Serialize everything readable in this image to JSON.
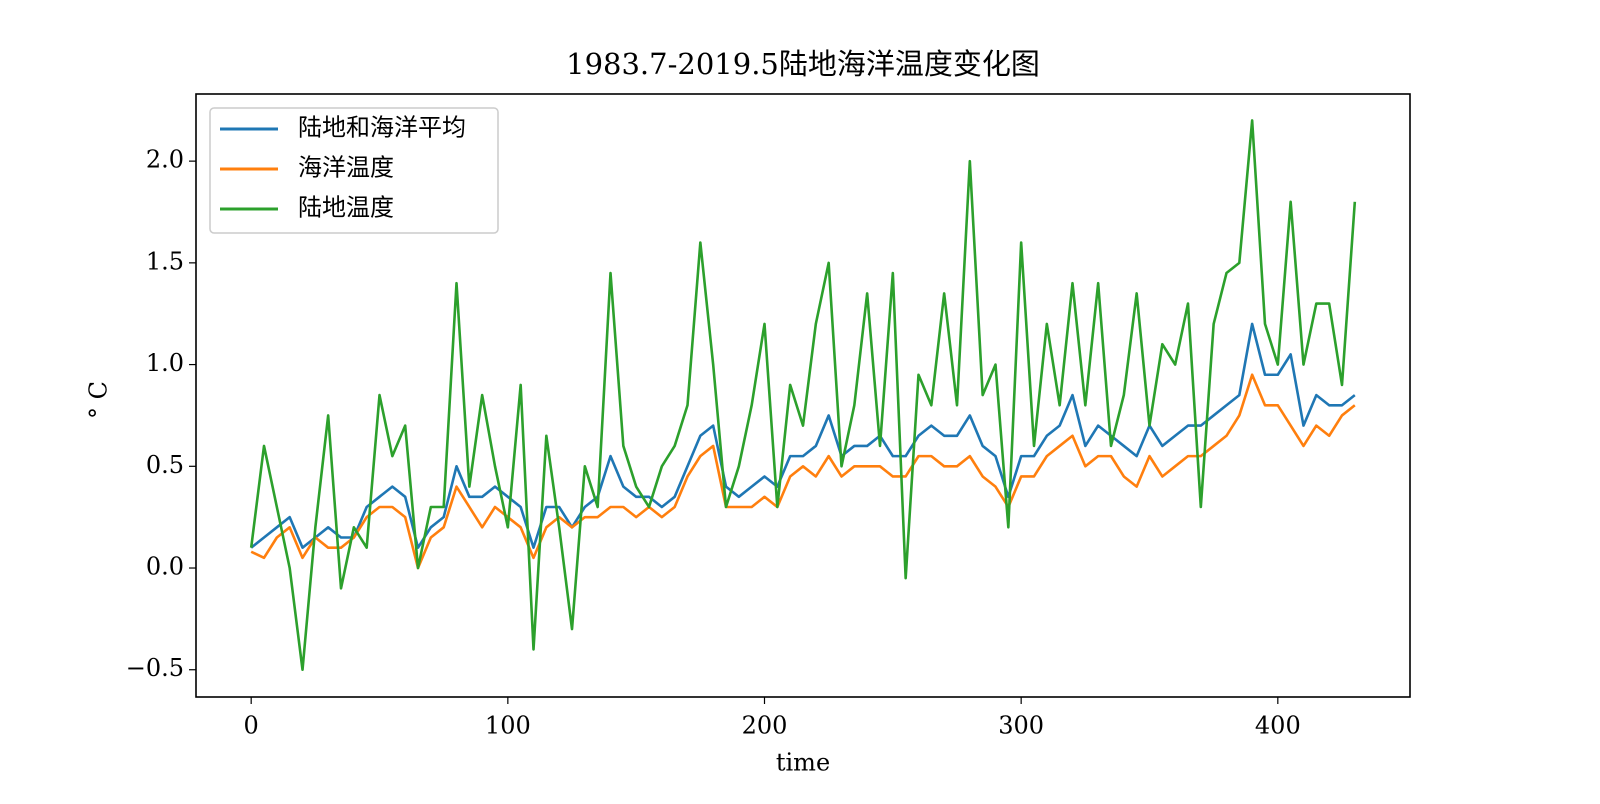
{
  "chart_data": {
    "type": "line",
    "title": "1983.7-2019.5陆地海洋温度变化图",
    "x_label": "time",
    "y_label": "° C",
    "x": [
      0,
      5,
      10,
      15,
      20,
      25,
      30,
      35,
      40,
      45,
      50,
      55,
      60,
      65,
      70,
      75,
      80,
      85,
      90,
      95,
      100,
      105,
      110,
      115,
      120,
      125,
      130,
      135,
      140,
      145,
      150,
      155,
      160,
      165,
      170,
      175,
      180,
      185,
      190,
      195,
      200,
      205,
      210,
      215,
      220,
      225,
      230,
      235,
      240,
      245,
      250,
      255,
      260,
      265,
      270,
      275,
      280,
      285,
      290,
      295,
      300,
      305,
      310,
      315,
      320,
      325,
      330,
      335,
      340,
      345,
      350,
      355,
      360,
      365,
      370,
      375,
      380,
      385,
      390,
      395,
      400,
      405,
      410,
      415,
      420,
      425,
      430
    ],
    "series": [
      {
        "name": "陆地和海洋平均",
        "color": "#1f77b4",
        "values": [
          0.1,
          0.15,
          0.2,
          0.25,
          0.1,
          0.15,
          0.2,
          0.15,
          0.15,
          0.3,
          0.35,
          0.4,
          0.35,
          0.1,
          0.2,
          0.25,
          0.5,
          0.35,
          0.35,
          0.4,
          0.35,
          0.3,
          0.1,
          0.3,
          0.3,
          0.2,
          0.3,
          0.35,
          0.55,
          0.4,
          0.35,
          0.35,
          0.3,
          0.35,
          0.5,
          0.65,
          0.7,
          0.4,
          0.35,
          0.4,
          0.45,
          0.4,
          0.55,
          0.55,
          0.6,
          0.75,
          0.55,
          0.6,
          0.6,
          0.65,
          0.55,
          0.55,
          0.65,
          0.7,
          0.65,
          0.65,
          0.75,
          0.6,
          0.55,
          0.35,
          0.55,
          0.55,
          0.65,
          0.7,
          0.85,
          0.6,
          0.7,
          0.65,
          0.6,
          0.55,
          0.7,
          0.6,
          0.65,
          0.7,
          0.7,
          0.75,
          0.8,
          0.85,
          1.2,
          0.95,
          0.95,
          1.05,
          0.7,
          0.85,
          0.8,
          0.8,
          0.85
        ]
      },
      {
        "name": "海洋温度",
        "color": "#ff7f0e",
        "values": [
          0.08,
          0.05,
          0.15,
          0.2,
          0.05,
          0.15,
          0.1,
          0.1,
          0.15,
          0.25,
          0.3,
          0.3,
          0.25,
          0.0,
          0.15,
          0.2,
          0.4,
          0.3,
          0.2,
          0.3,
          0.25,
          0.2,
          0.05,
          0.2,
          0.25,
          0.2,
          0.25,
          0.25,
          0.3,
          0.3,
          0.25,
          0.3,
          0.25,
          0.3,
          0.45,
          0.55,
          0.6,
          0.3,
          0.3,
          0.3,
          0.35,
          0.3,
          0.45,
          0.5,
          0.45,
          0.55,
          0.45,
          0.5,
          0.5,
          0.5,
          0.45,
          0.45,
          0.55,
          0.55,
          0.5,
          0.5,
          0.55,
          0.45,
          0.4,
          0.3,
          0.45,
          0.45,
          0.55,
          0.6,
          0.65,
          0.5,
          0.55,
          0.55,
          0.45,
          0.4,
          0.55,
          0.45,
          0.5,
          0.55,
          0.55,
          0.6,
          0.65,
          0.75,
          0.95,
          0.8,
          0.8,
          0.7,
          0.6,
          0.7,
          0.65,
          0.75,
          0.8
        ]
      },
      {
        "name": "陆地温度",
        "color": "#2ca02c",
        "values": [
          0.1,
          0.6,
          0.3,
          0.0,
          -0.5,
          0.2,
          0.75,
          -0.1,
          0.2,
          0.1,
          0.85,
          0.55,
          0.7,
          0.0,
          0.3,
          0.3,
          1.4,
          0.4,
          0.85,
          0.5,
          0.2,
          0.9,
          -0.4,
          0.65,
          0.2,
          -0.3,
          0.5,
          0.3,
          1.45,
          0.6,
          0.4,
          0.3,
          0.5,
          0.6,
          0.8,
          1.6,
          1.0,
          0.3,
          0.5,
          0.8,
          1.2,
          0.3,
          0.9,
          0.7,
          1.2,
          1.5,
          0.5,
          0.8,
          1.35,
          0.6,
          1.45,
          -0.05,
          0.95,
          0.8,
          1.35,
          0.8,
          2.0,
          0.85,
          1.0,
          0.2,
          1.6,
          0.6,
          1.2,
          0.8,
          1.4,
          0.8,
          1.4,
          0.6,
          0.85,
          1.35,
          0.7,
          1.1,
          1.0,
          1.3,
          0.3,
          1.2,
          1.45,
          1.5,
          2.2,
          1.2,
          1.0,
          1.8,
          1.0,
          1.3,
          1.3,
          0.9,
          1.8
        ]
      }
    ],
    "xlim": [
      -21.5,
      451.5
    ],
    "ylim": [
      -0.634,
      2.33
    ],
    "xticks": [
      0,
      100,
      200,
      300,
      400
    ],
    "yticks": [
      {
        "value": -0.5,
        "label": "−0.5"
      },
      {
        "value": 0,
        "label": "0.0"
      },
      0.5,
      {
        "value": 1,
        "label": "1.0"
      },
      1.5,
      {
        "value": 2,
        "label": "2.0"
      }
    ],
    "legend": "upper left"
  }
}
